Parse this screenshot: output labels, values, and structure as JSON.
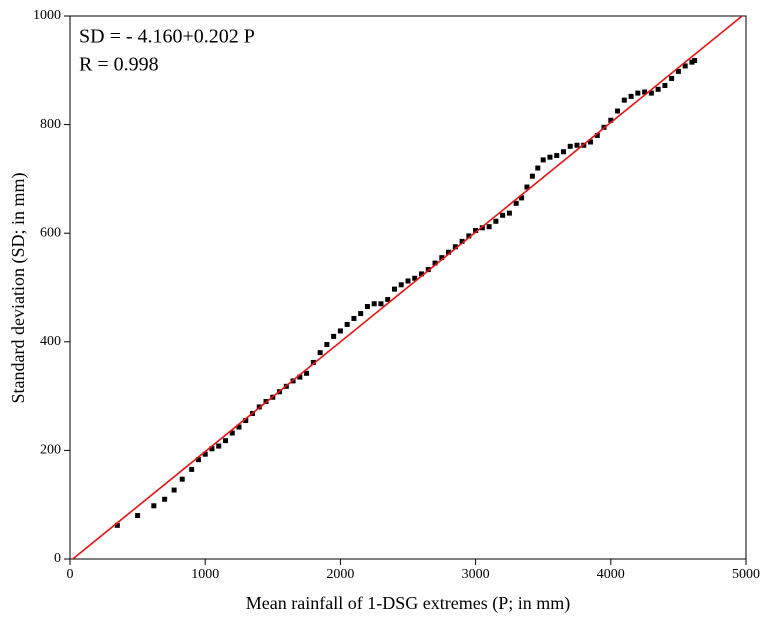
{
  "chart_data": {
    "type": "scatter",
    "annotations": [
      "SD = - 4.160+0.202 P",
      "R = 0.998"
    ],
    "x_label": "Mean rainfall of 1-DSG extremes (P; in mm)",
    "y_label": "Standard deviation (SD; in mm)",
    "xlim": [
      0,
      5000
    ],
    "xticks": [
      0,
      1000,
      2000,
      3000,
      4000,
      5000
    ],
    "ylim": [
      0,
      1000
    ],
    "yticks": [
      0,
      200,
      400,
      600,
      800,
      1000
    ],
    "series": [
      {
        "color": "#000000",
        "x": [
          350,
          500,
          620,
          700,
          770,
          830,
          900,
          950,
          1000,
          1050,
          1100,
          1150,
          1200,
          1250,
          1300,
          1350,
          1400,
          1450,
          1500,
          1550,
          1600,
          1650,
          1700,
          1750,
          1800,
          1850,
          1900,
          1950,
          2000,
          2050,
          2100,
          2150,
          2200,
          2250,
          2300,
          2350,
          2400,
          2450,
          2500,
          2550,
          2600,
          2650,
          2700,
          2750,
          2800,
          2850,
          2900,
          2950,
          3000,
          3050,
          3100,
          3150,
          3200,
          3250,
          3300,
          3340,
          3380,
          3420,
          3460,
          3500,
          3550,
          3600,
          3650,
          3700,
          3750,
          3800,
          3850,
          3900,
          3950,
          4000,
          4050,
          4100,
          4150,
          4200,
          4250,
          4300,
          4350,
          4400,
          4450,
          4500,
          4550,
          4600,
          4620
        ],
        "values": [
          62,
          80,
          98,
          110,
          127,
          147,
          165,
          183,
          193,
          203,
          208,
          218,
          232,
          243,
          255,
          268,
          280,
          290,
          298,
          308,
          318,
          328,
          335,
          342,
          362,
          380,
          395,
          410,
          420,
          432,
          443,
          452,
          465,
          470,
          470,
          478,
          497,
          505,
          512,
          517,
          525,
          533,
          545,
          555,
          565,
          575,
          585,
          595,
          605,
          610,
          612,
          622,
          633,
          637,
          655,
          665,
          685,
          705,
          720,
          735,
          740,
          743,
          750,
          760,
          762,
          762,
          768,
          780,
          795,
          808,
          825,
          845,
          852,
          858,
          860,
          858,
          865,
          872,
          885,
          898,
          908,
          915,
          918
        ]
      }
    ],
    "fit": {
      "intercept": -4.16,
      "slope": 0.202,
      "color": "#ee1111"
    }
  }
}
